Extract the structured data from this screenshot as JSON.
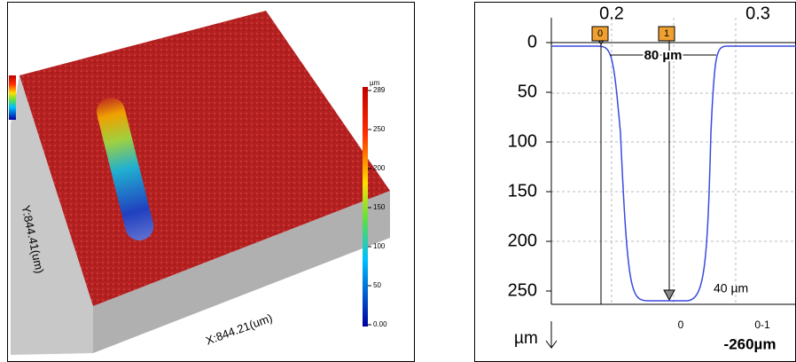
{
  "left_panel": {
    "colorbar": {
      "unit": "µm",
      "ticks": [
        "289",
        "250",
        "200",
        "150",
        "100",
        "50",
        "0.00"
      ]
    },
    "y_label": "Y:844.41(um)",
    "x_label": "X:844.21(um)"
  },
  "right_panel": {
    "top_ticks": [
      "0.2",
      "0.3"
    ],
    "markers": [
      "0",
      "1"
    ],
    "y_ticks": [
      "0",
      "50",
      "100",
      "150",
      "200",
      "250"
    ],
    "y_unit": "µm",
    "width_label": "80 µm",
    "bottom_width_label": "40 µm",
    "cursor_labels": [
      "0",
      "0-1"
    ],
    "depth_label": "-260µm"
  }
}
